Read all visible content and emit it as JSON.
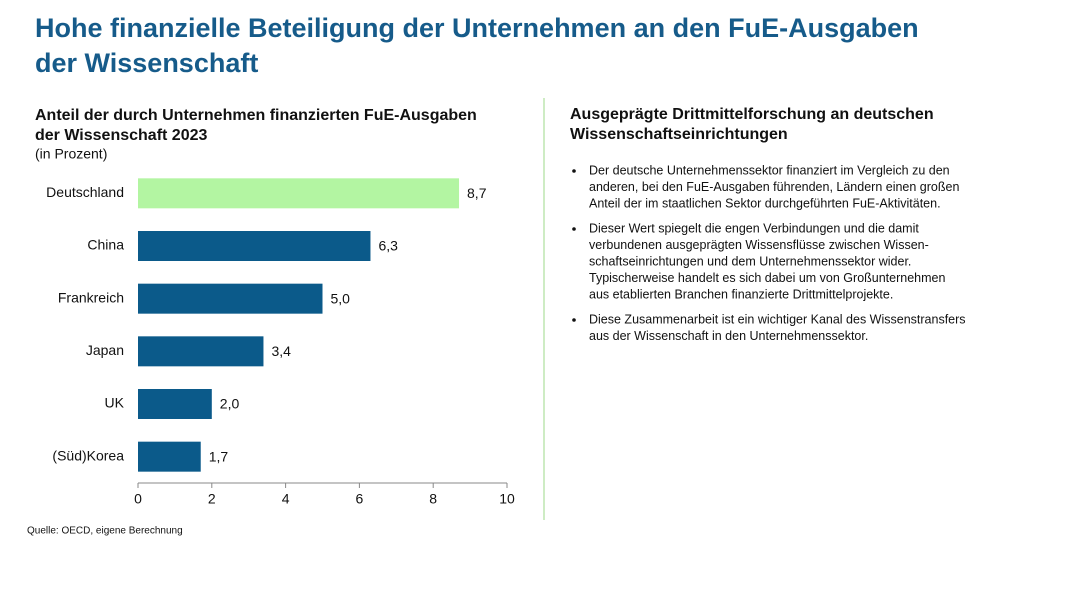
{
  "page_title": [
    "Hohe finanzielle Beteiligung der Unternehmen an den FuE-Ausgaben",
    "der Wissenschaft"
  ],
  "chart_data": {
    "type": "bar",
    "orientation": "horizontal",
    "title": [
      "Anteil der durch Unternehmen finanzierten FuE-Ausgaben",
      "der Wissenschaft 2023"
    ],
    "subtitle": "(in Prozent)",
    "categories": [
      "Deutschland",
      "China",
      "Frankreich",
      "Japan",
      "UK",
      "(Süd)Korea"
    ],
    "values": [
      8.7,
      6.3,
      5.0,
      3.4,
      2.0,
      1.7
    ],
    "value_labels": [
      "8,7",
      "6,3",
      "5,0",
      "3,4",
      "2,0",
      "1,7"
    ],
    "colors": [
      "#b3f5a2",
      "#0b5a8a",
      "#0b5a8a",
      "#0b5a8a",
      "#0b5a8a",
      "#0b5a8a"
    ],
    "xlim": [
      0,
      10
    ],
    "xticks": [
      0,
      2,
      4,
      6,
      8,
      10
    ],
    "grid": false
  },
  "right_panel": {
    "heading": [
      "Ausgeprägte Drittmittelforschung an deutschen",
      "Wissenschaftseinrichtungen"
    ],
    "bullets": [
      [
        "Der deutsche Unternehmenssektor finanziert im Vergleich zu den",
        "anderen, bei den FuE-Ausgaben führenden, Ländern einen großen",
        "Anteil der im staatlichen Sektor durchgeführten FuE-Aktivitäten."
      ],
      [
        "Dieser Wert spiegelt die engen Verbindungen und die damit",
        "verbundenen ausgeprägten Wissensflüsse zwischen Wissen-",
        "schaftseinrichtungen und dem Unternehmenssektor wider.",
        "Typischerweise handelt es sich dabei um von Großunternehmen",
        "aus etablierten Branchen finanzierte Drittmittelprojekte."
      ],
      [
        "Diese Zusammenarbeit ist ein wichtiger Kanal des Wissenstransfers",
        "aus der Wissenschaft in den Unternehmenssektor."
      ]
    ]
  },
  "source": "Quelle: OECD, eigene Berechnung"
}
